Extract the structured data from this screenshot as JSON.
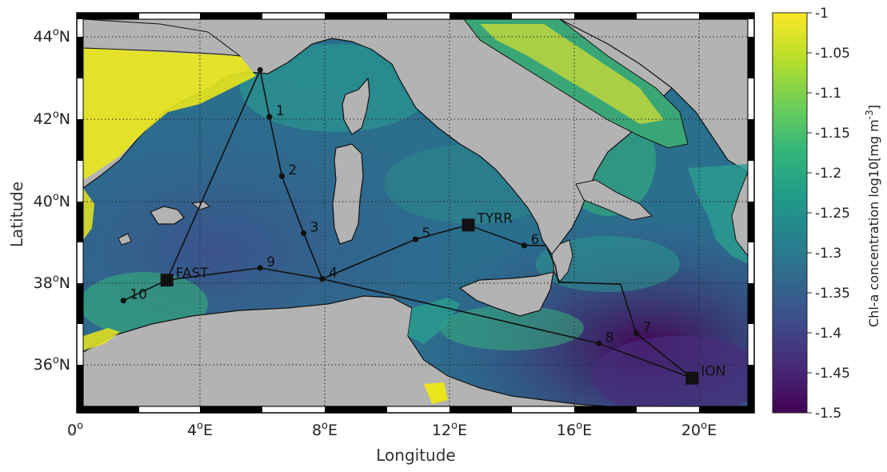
{
  "map": {
    "xlabel": "Longitude",
    "ylabel": "Latitude",
    "lon_ticks": [
      {
        "value": 0,
        "deg": "0",
        "hemi": ""
      },
      {
        "value": 4,
        "deg": "4",
        "hemi": "E"
      },
      {
        "value": 8,
        "deg": "8",
        "hemi": "E"
      },
      {
        "value": 12,
        "deg": "12",
        "hemi": "E"
      },
      {
        "value": 16,
        "deg": "16",
        "hemi": "E"
      },
      {
        "value": 20,
        "deg": "20",
        "hemi": "E"
      }
    ],
    "lat_ticks": [
      {
        "value": 44,
        "deg": "44",
        "hemi": "N"
      },
      {
        "value": 42,
        "deg": "42",
        "hemi": "N"
      },
      {
        "value": 40,
        "deg": "40",
        "hemi": "N"
      },
      {
        "value": 38,
        "deg": "38",
        "hemi": "N"
      },
      {
        "value": 36,
        "deg": "36",
        "hemi": "N"
      }
    ],
    "lon_range": [
      0,
      21.8
    ],
    "lat_range": [
      34.7,
      44.5
    ],
    "grid": "dotted",
    "colors": {
      "land": "#b3b3b3",
      "track": "#111111",
      "station": "#111111"
    }
  },
  "colorbar": {
    "title_main": "Chl-a concentration log10[mg m",
    "title_sup": "-3",
    "title_end": "]",
    "range": [
      -1.5,
      -1.0
    ],
    "ticks": [
      "-1",
      "-1.05",
      "-1.1",
      "-1.15",
      "-1.2",
      "-1.25",
      "-1.3",
      "-1.35",
      "-1.4",
      "-1.45",
      "-1.5"
    ],
    "colormap": [
      "#440154",
      "#482878",
      "#3e4989",
      "#31688e",
      "#26828e",
      "#1f9e89",
      "#35b779",
      "#6ece58",
      "#b5de2b",
      "#fde725"
    ]
  },
  "stations": [
    {
      "label": "1",
      "lon": 6.2,
      "lat": 41.95,
      "type": "small"
    },
    {
      "label": "2",
      "lon": 6.6,
      "lat": 40.5,
      "type": "small"
    },
    {
      "label": "3",
      "lon": 7.3,
      "lat": 39.1,
      "type": "small"
    },
    {
      "label": "4",
      "lon": 7.9,
      "lat": 37.98,
      "type": "small"
    },
    {
      "label": "5",
      "lon": 10.9,
      "lat": 38.95,
      "type": "small"
    },
    {
      "label": "6",
      "lon": 14.4,
      "lat": 38.8,
      "type": "small"
    },
    {
      "label": "7",
      "lon": 18.0,
      "lat": 36.65,
      "type": "small"
    },
    {
      "label": "8",
      "lon": 16.8,
      "lat": 36.4,
      "type": "small"
    },
    {
      "label": "9",
      "lon": 5.9,
      "lat": 38.25,
      "type": "small"
    },
    {
      "label": "10",
      "lon": 1.5,
      "lat": 37.45,
      "type": "small"
    },
    {
      "label": "TYRR",
      "lon": 12.6,
      "lat": 39.3,
      "type": "long"
    },
    {
      "label": "FAST",
      "lon": 2.9,
      "lat": 37.95,
      "type": "long"
    },
    {
      "label": "ION",
      "lon": 19.8,
      "lat": 35.55,
      "type": "long"
    }
  ]
}
